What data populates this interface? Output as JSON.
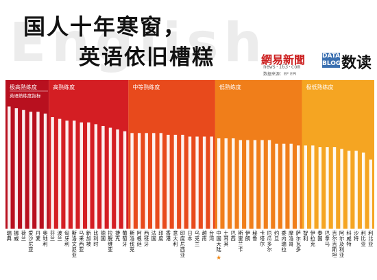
{
  "header": {
    "bg_word": "English",
    "title_line1": "国人十年寒窗，",
    "title_line2": "英语依旧槽糕",
    "logo_text": "網易新聞",
    "logo_url": "news·163·com",
    "source": "数据来源：EF EPI",
    "data_badge_top": "DATA",
    "data_badge_bottom": "BLOG",
    "brand_name": "数读"
  },
  "chart_data": {
    "type": "bar",
    "bands": [
      {
        "label": "极高熟练度",
        "color": "#b8101f"
      },
      {
        "label": "高熟练度",
        "color": "#d41e23"
      },
      {
        "label": "中等熟练度",
        "color": "#e84a1c"
      },
      {
        "label": "低熟练度",
        "color": "#f07e1a"
      },
      {
        "label": "极低熟练度",
        "color": "#f5a522"
      }
    ],
    "legend_label": "英语熟练度指标",
    "highlight_category": "中国大陆",
    "highlight_marker": "★",
    "categories": [
      "瑞典",
      "挪威",
      "荷兰",
      "爱沙尼亚",
      "丹麦",
      "奥地利",
      "芬兰",
      "波兰",
      "匈牙利",
      "斯洛文尼亚",
      "马来西亚",
      "新加坡",
      "比利时",
      "德国",
      "拉脱维亚",
      "捷克",
      "葡萄牙",
      "斯洛伐克",
      "阿根廷",
      "西班牙",
      "法国",
      "印度",
      "香港",
      "意大利",
      "印度尼西亚",
      "日本",
      "乌克兰",
      "越南",
      "台湾",
      "中国大陆",
      "土耳其",
      "巴西",
      "斯里兰卡",
      "伊朗",
      "秘鲁",
      "卡塔尔",
      "厄瓜多尔",
      "约旦",
      "委内瑞拉",
      "摩洛哥",
      "萨尔瓦多",
      "智利",
      "伊拉克",
      "泰国",
      "巴拿马",
      "吉尔吉斯坦",
      "阿尔及利亚",
      "科威特",
      "沙特",
      "利比亚",
      "利比亚2"
    ],
    "bands_index": [
      0,
      0,
      0,
      0,
      0,
      0,
      1,
      1,
      1,
      1,
      1,
      1,
      1,
      1,
      1,
      1,
      1,
      2,
      2,
      2,
      2,
      2,
      2,
      2,
      2,
      2,
      2,
      2,
      2,
      3,
      3,
      3,
      3,
      3,
      3,
      3,
      3,
      3,
      3,
      3,
      3,
      4,
      4,
      4,
      4,
      4,
      4,
      4,
      4,
      4,
      4
    ],
    "values": [
      69,
      68,
      67,
      66,
      66,
      65,
      63,
      62,
      61,
      61,
      60,
      60,
      59,
      58,
      57,
      56,
      55,
      54,
      54,
      54,
      54,
      54,
      53,
      53,
      53,
      52,
      52,
      52,
      52,
      51,
      51,
      51,
      50,
      50,
      50,
      50,
      50,
      48,
      48,
      48,
      47,
      47,
      47,
      46,
      46,
      46,
      45,
      44,
      44,
      43,
      39
    ],
    "ylim": [
      0,
      75
    ]
  }
}
